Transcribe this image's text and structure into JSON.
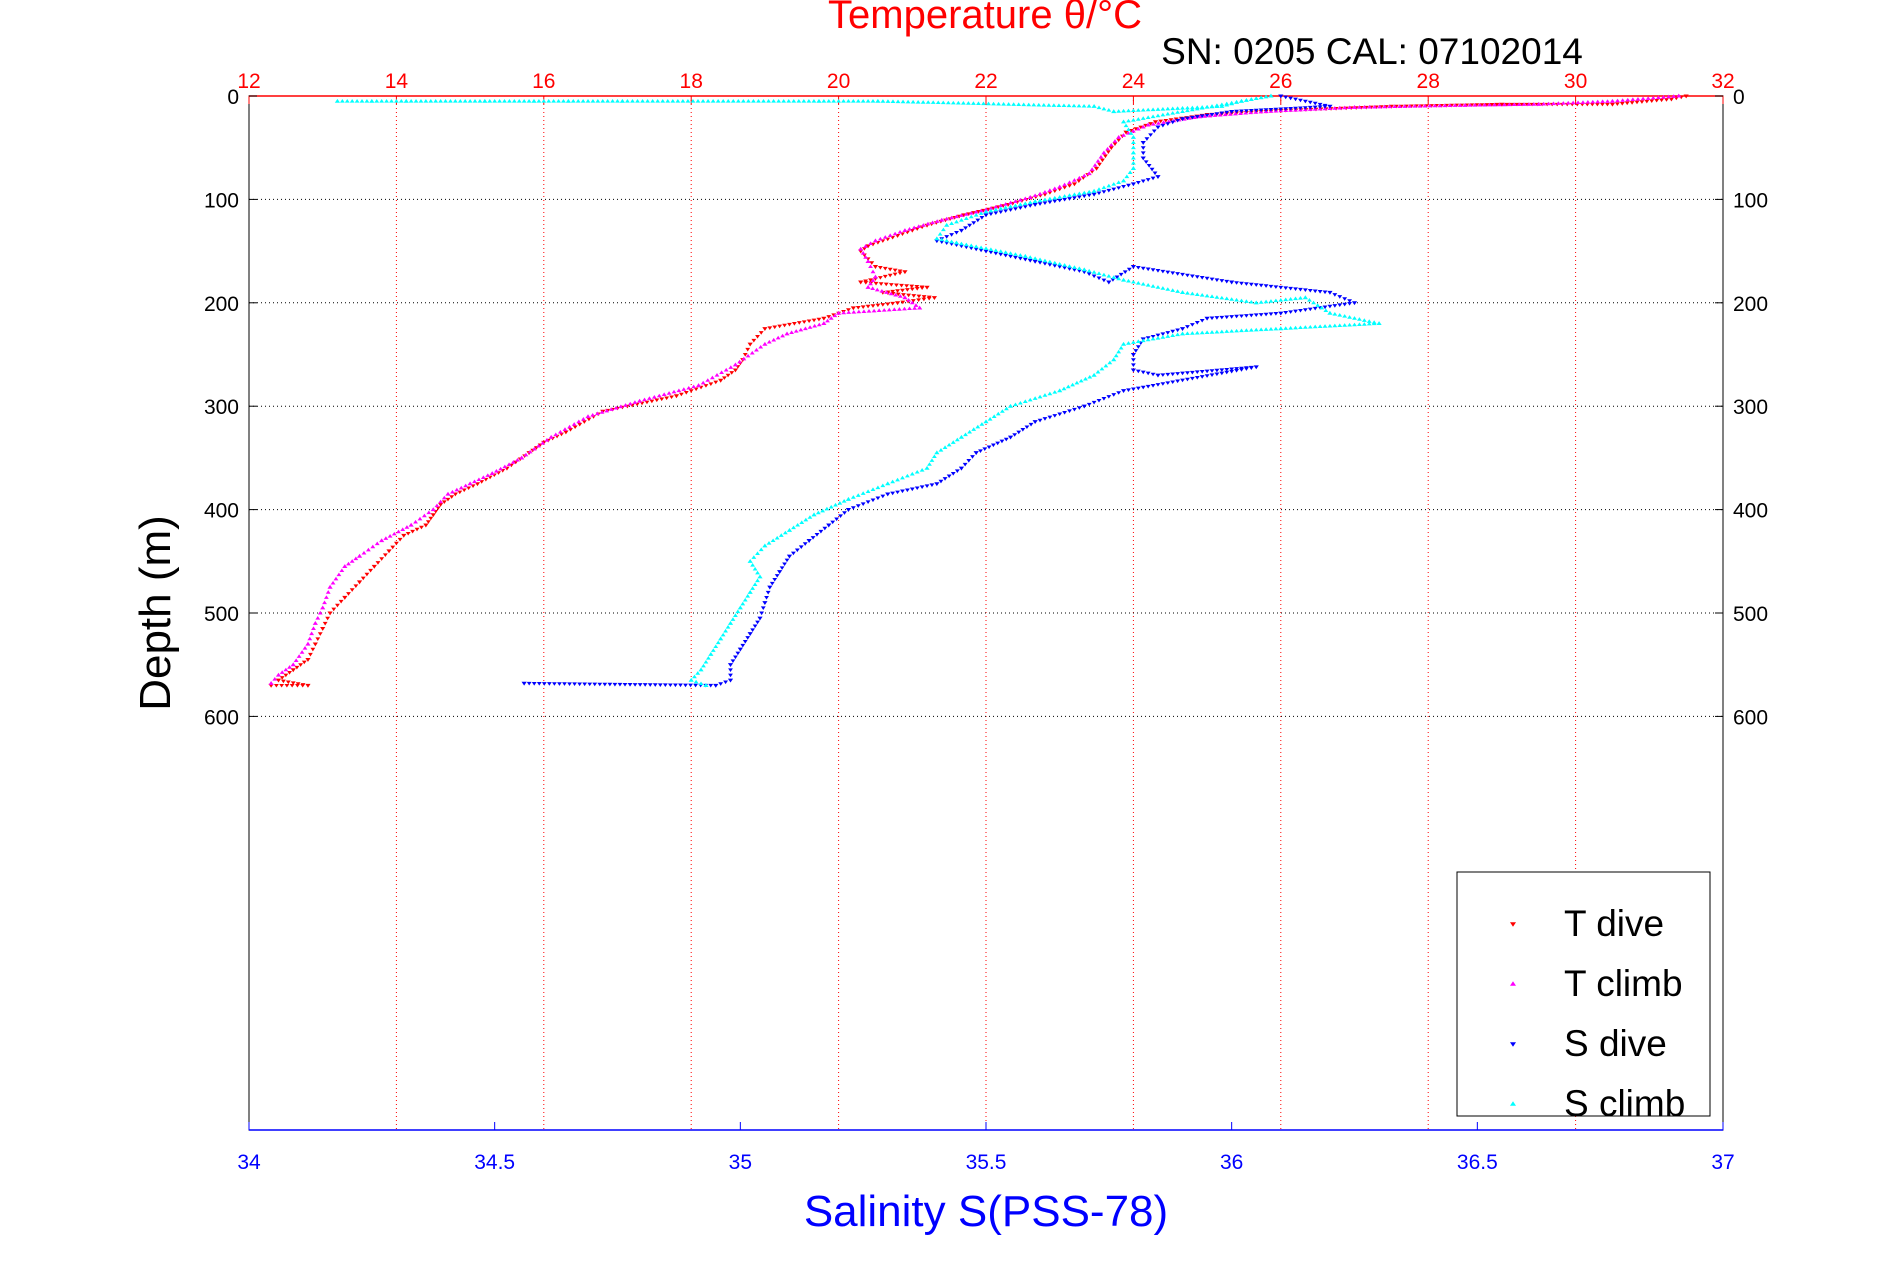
{
  "chart_data": {
    "type": "scatter",
    "title": "Temperature θ/°C",
    "subtitle": "SN: 0205  CAL: 07102014",
    "xlabel": "Salinity S(PSS-78)",
    "ylabel": "Depth (m)",
    "grid": true,
    "legend_position": "bottom-right",
    "colors": {
      "temperature_axis": "#ff0000",
      "salinity_axis": "#0000ff",
      "t_dive": "#ff0000",
      "t_climb": "#ff00ff",
      "s_dive": "#0000ff",
      "s_climb": "#00ffff"
    },
    "temperature_axis": {
      "range": [
        12,
        32
      ],
      "ticks": [
        "12",
        "14",
        "16",
        "18",
        "20",
        "22",
        "24",
        "26",
        "28",
        "30",
        "32"
      ]
    },
    "salinity_axis": {
      "range": [
        34,
        37
      ],
      "ticks": [
        "34",
        "34.5",
        "35",
        "35.5",
        "36",
        "36.5",
        "37"
      ]
    },
    "depth_axis": {
      "range": [
        0,
        1000
      ],
      "reversed": true,
      "ticks": [
        "0",
        "100",
        "200",
        "300",
        "400",
        "500",
        "600"
      ]
    },
    "series": [
      {
        "name": "T dive",
        "axis": "temperature",
        "marker": "triangle-down",
        "points": [
          [
            31.5,
            0
          ],
          [
            31.3,
            3
          ],
          [
            30.5,
            8
          ],
          [
            29.0,
            8
          ],
          [
            27.5,
            10
          ],
          [
            26.0,
            14
          ],
          [
            25.0,
            18
          ],
          [
            24.3,
            25
          ],
          [
            23.9,
            35
          ],
          [
            23.7,
            50
          ],
          [
            23.5,
            70
          ],
          [
            23.2,
            85
          ],
          [
            22.8,
            95
          ],
          [
            22.3,
            105
          ],
          [
            21.7,
            115
          ],
          [
            21.2,
            125
          ],
          [
            20.8,
            135
          ],
          [
            20.4,
            145
          ],
          [
            20.3,
            150
          ],
          [
            20.5,
            165
          ],
          [
            20.9,
            170
          ],
          [
            20.3,
            180
          ],
          [
            21.2,
            185
          ],
          [
            20.6,
            190
          ],
          [
            21.3,
            195
          ],
          [
            20.8,
            200
          ],
          [
            20.2,
            205
          ],
          [
            19.8,
            215
          ],
          [
            19.0,
            225
          ],
          [
            18.8,
            240
          ],
          [
            18.7,
            255
          ],
          [
            18.6,
            265
          ],
          [
            18.4,
            275
          ],
          [
            17.8,
            290
          ],
          [
            16.8,
            305
          ],
          [
            16.3,
            325
          ],
          [
            16.0,
            335
          ],
          [
            15.8,
            345
          ],
          [
            15.5,
            360
          ],
          [
            15.1,
            375
          ],
          [
            14.8,
            385
          ],
          [
            14.6,
            395
          ],
          [
            14.5,
            405
          ],
          [
            14.4,
            415
          ],
          [
            14.1,
            425
          ],
          [
            13.9,
            440
          ],
          [
            13.7,
            455
          ],
          [
            13.5,
            470
          ],
          [
            13.3,
            485
          ],
          [
            13.1,
            500
          ],
          [
            13.0,
            515
          ],
          [
            12.9,
            530
          ],
          [
            12.8,
            545
          ],
          [
            12.6,
            555
          ],
          [
            12.4,
            565
          ],
          [
            12.8,
            570
          ],
          [
            12.3,
            570
          ]
        ]
      },
      {
        "name": "T climb",
        "axis": "temperature",
        "marker": "triangle-up",
        "points": [
          [
            31.4,
            0
          ],
          [
            30.5,
            5
          ],
          [
            29.5,
            8
          ],
          [
            28.5,
            9
          ],
          [
            27.0,
            11
          ],
          [
            25.8,
            15
          ],
          [
            24.9,
            20
          ],
          [
            24.2,
            28
          ],
          [
            23.8,
            40
          ],
          [
            23.6,
            55
          ],
          [
            23.4,
            75
          ],
          [
            23.0,
            88
          ],
          [
            22.6,
            98
          ],
          [
            22.0,
            110
          ],
          [
            21.4,
            120
          ],
          [
            20.9,
            130
          ],
          [
            20.5,
            140
          ],
          [
            20.3,
            148
          ],
          [
            20.4,
            160
          ],
          [
            20.5,
            175
          ],
          [
            20.4,
            185
          ],
          [
            20.9,
            195
          ],
          [
            21.1,
            205
          ],
          [
            20.0,
            210
          ],
          [
            19.8,
            220
          ],
          [
            19.3,
            230
          ],
          [
            19.0,
            240
          ],
          [
            18.6,
            260
          ],
          [
            18.1,
            280
          ],
          [
            17.3,
            295
          ],
          [
            16.6,
            310
          ],
          [
            16.1,
            330
          ],
          [
            15.7,
            350
          ],
          [
            15.3,
            365
          ],
          [
            15.0,
            375
          ],
          [
            14.7,
            385
          ],
          [
            14.5,
            400
          ],
          [
            14.2,
            415
          ],
          [
            13.8,
            430
          ],
          [
            13.5,
            445
          ],
          [
            13.3,
            455
          ],
          [
            13.1,
            475
          ],
          [
            13.0,
            495
          ],
          [
            12.9,
            510
          ],
          [
            12.8,
            530
          ],
          [
            12.6,
            550
          ],
          [
            12.4,
            560
          ],
          [
            12.3,
            568
          ]
        ]
      },
      {
        "name": "S dive",
        "axis": "salinity",
        "marker": "triangle-down",
        "points": [
          [
            36.1,
            0
          ],
          [
            36.2,
            10
          ],
          [
            36.0,
            15
          ],
          [
            35.9,
            22
          ],
          [
            35.85,
            30
          ],
          [
            35.82,
            45
          ],
          [
            35.82,
            60
          ],
          [
            35.85,
            78
          ],
          [
            35.8,
            85
          ],
          [
            35.72,
            95
          ],
          [
            35.6,
            105
          ],
          [
            35.5,
            115
          ],
          [
            35.45,
            130
          ],
          [
            35.4,
            140
          ],
          [
            35.5,
            150
          ],
          [
            35.6,
            160
          ],
          [
            35.7,
            170
          ],
          [
            35.75,
            180
          ],
          [
            35.8,
            165
          ],
          [
            36.0,
            180
          ],
          [
            36.2,
            190
          ],
          [
            36.25,
            200
          ],
          [
            36.1,
            210
          ],
          [
            35.95,
            215
          ],
          [
            35.9,
            225
          ],
          [
            35.82,
            235
          ],
          [
            35.8,
            250
          ],
          [
            35.8,
            265
          ],
          [
            35.85,
            270
          ],
          [
            36.05,
            262
          ],
          [
            35.78,
            285
          ],
          [
            35.7,
            300
          ],
          [
            35.6,
            315
          ],
          [
            35.55,
            330
          ],
          [
            35.48,
            345
          ],
          [
            35.45,
            360
          ],
          [
            35.4,
            375
          ],
          [
            35.3,
            385
          ],
          [
            35.22,
            400
          ],
          [
            35.18,
            415
          ],
          [
            35.14,
            430
          ],
          [
            35.1,
            445
          ],
          [
            35.08,
            460
          ],
          [
            35.06,
            475
          ],
          [
            35.05,
            490
          ],
          [
            35.04,
            505
          ],
          [
            35.02,
            520
          ],
          [
            35.0,
            535
          ],
          [
            34.98,
            550
          ],
          [
            34.98,
            565
          ],
          [
            34.95,
            570
          ],
          [
            34.56,
            568
          ]
        ]
      },
      {
        "name": "S climb",
        "axis": "salinity",
        "marker": "triangle-up",
        "points": [
          [
            34.18,
            5
          ],
          [
            34.25,
            5
          ],
          [
            34.32,
            5
          ],
          [
            34.48,
            5
          ],
          [
            34.58,
            5
          ],
          [
            34.65,
            5
          ],
          [
            34.76,
            5
          ],
          [
            35.16,
            5
          ],
          [
            35.28,
            5
          ],
          [
            35.72,
            10
          ],
          [
            35.76,
            15
          ],
          [
            35.98,
            10
          ],
          [
            36.02,
            5
          ],
          [
            36.08,
            0
          ],
          [
            35.78,
            25
          ],
          [
            35.8,
            40
          ],
          [
            35.8,
            55
          ],
          [
            35.8,
            70
          ],
          [
            35.78,
            82
          ],
          [
            35.72,
            92
          ],
          [
            35.6,
            102
          ],
          [
            35.5,
            112
          ],
          [
            35.42,
            125
          ],
          [
            35.4,
            138
          ],
          [
            35.44,
            142
          ],
          [
            35.58,
            155
          ],
          [
            35.7,
            168
          ],
          [
            35.78,
            178
          ],
          [
            35.9,
            190
          ],
          [
            36.05,
            200
          ],
          [
            36.15,
            195
          ],
          [
            36.2,
            210
          ],
          [
            36.3,
            220
          ],
          [
            36.1,
            225
          ],
          [
            35.9,
            230
          ],
          [
            35.78,
            240
          ],
          [
            35.76,
            255
          ],
          [
            35.72,
            270
          ],
          [
            35.65,
            285
          ],
          [
            35.55,
            300
          ],
          [
            35.5,
            315
          ],
          [
            35.45,
            330
          ],
          [
            35.4,
            345
          ],
          [
            35.38,
            360
          ],
          [
            35.3,
            375
          ],
          [
            35.22,
            390
          ],
          [
            35.15,
            405
          ],
          [
            35.1,
            420
          ],
          [
            35.05,
            435
          ],
          [
            35.02,
            450
          ],
          [
            35.04,
            465
          ],
          [
            35.02,
            480
          ],
          [
            35.0,
            495
          ],
          [
            34.98,
            510
          ],
          [
            34.96,
            525
          ],
          [
            34.94,
            540
          ],
          [
            34.92,
            555
          ],
          [
            34.9,
            565
          ],
          [
            34.93,
            570
          ]
        ]
      }
    ]
  }
}
